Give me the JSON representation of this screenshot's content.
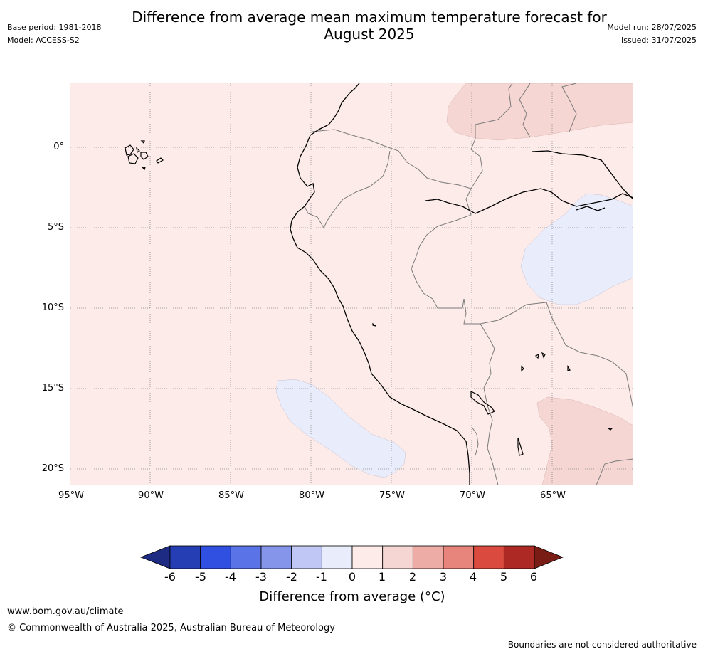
{
  "header": {
    "title": "Difference from average mean maximum temperature forecast for August 2025",
    "base_period": "Base period: 1981-2018",
    "model": "Model: ACCESS-S2",
    "model_run": "Model run: 28/07/2025",
    "issued": "Issued: 31/07/2025"
  },
  "map": {
    "lat_labels": [
      "0°",
      "5°S",
      "10°S",
      "15°S",
      "20°S"
    ],
    "lon_labels": [
      "95°W",
      "90°W",
      "85°W",
      "80°W",
      "75°W",
      "70°W",
      "65°W"
    ],
    "background_color": "#fcebe9",
    "colors": {
      "anomaly_0_1": "#fcebe9",
      "anomaly_1_2": "#f5d6d3",
      "anomaly_neg1_0": "#e9ecfb"
    }
  },
  "colorbar": {
    "ticks": [
      "-6",
      "-5",
      "-4",
      "-3",
      "-2",
      "-1",
      "0",
      "1",
      "2",
      "3",
      "4",
      "5",
      "6"
    ],
    "colors": [
      "#1e2b82",
      "#253eb4",
      "#3050e1",
      "#5a73e6",
      "#8596ea",
      "#c1c7f5",
      "#e9ecfb",
      "#fcebe9",
      "#f5d6d3",
      "#eeaca6",
      "#e7847c",
      "#db4a3f",
      "#ac2a23",
      "#7a1c16"
    ],
    "label": "Difference from average (°C)"
  },
  "footer": {
    "url": "www.bom.gov.au/climate",
    "copyright": "© Commonwealth of Australia 2025, Australian Bureau of Meteorology",
    "boundaries": "Boundaries are not considered authoritative"
  }
}
